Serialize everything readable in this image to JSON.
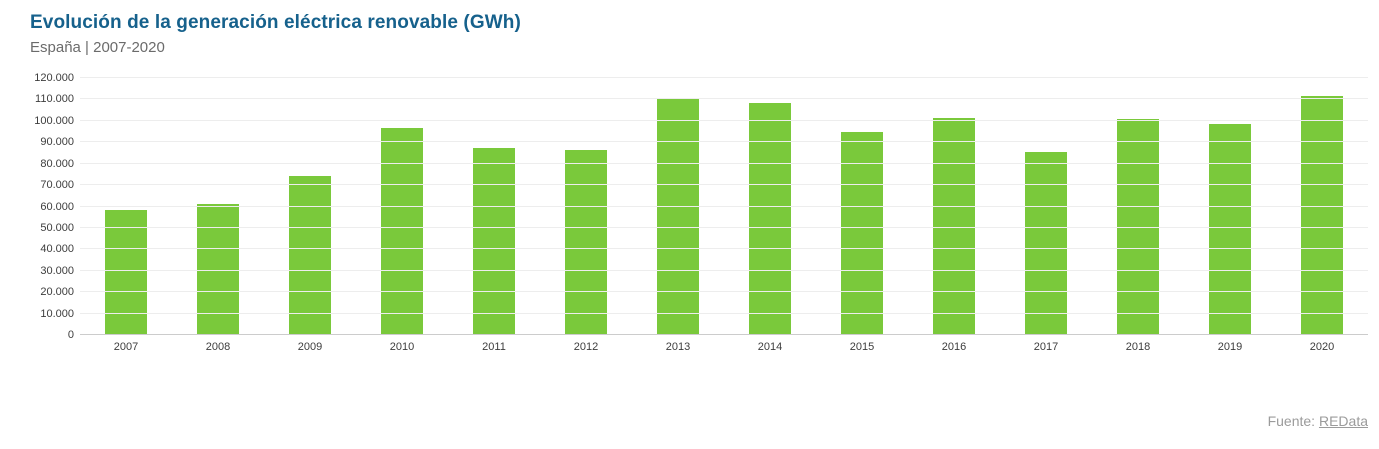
{
  "header": {
    "title": "Evolución de la generación eléctrica renovable (GWh)",
    "subtitle": "España | 2007-2020"
  },
  "footer": {
    "source_label": "Fuente:",
    "source_link_text": "REData"
  },
  "colors": {
    "bar_green": "#7ac93b",
    "title_blue": "#16618c",
    "subtitle_gray": "#6b6b6b",
    "axis_text": "#3d3d3d",
    "gridline": "#ededed",
    "axis_line": "#cccccc",
    "source_gray": "#9b9b9b"
  },
  "chart_data": {
    "type": "bar",
    "title": "Evolución de la generación eléctrica renovable (GWh)",
    "subtitle": "España | 2007-2020",
    "xlabel": "",
    "ylabel": "",
    "categories": [
      "2007",
      "2008",
      "2009",
      "2010",
      "2011",
      "2012",
      "2013",
      "2014",
      "2015",
      "2016",
      "2017",
      "2018",
      "2019",
      "2020"
    ],
    "values": [
      58000,
      60500,
      74000,
      96000,
      87000,
      86000,
      110000,
      108000,
      94500,
      101000,
      85000,
      100500,
      98000,
      111000
    ],
    "ylim": [
      0,
      120000
    ],
    "ytick_step": 10000,
    "ytick_labels": [
      "0",
      "10.000",
      "20.000",
      "30.000",
      "40.000",
      "50.000",
      "60.000",
      "70.000",
      "80.000",
      "90.000",
      "100.000",
      "110.000",
      "120.000"
    ],
    "grid": true,
    "legend": false,
    "bar_color": "#7ac93b"
  }
}
